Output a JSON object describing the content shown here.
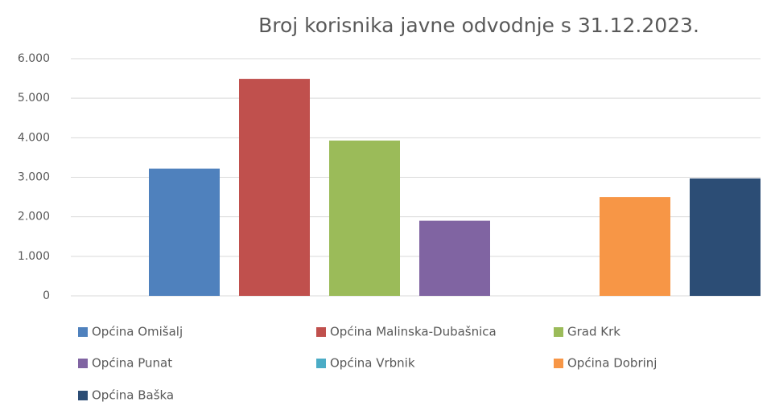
{
  "chart_data": {
    "type": "bar",
    "title": "Broj korisnika javne odvodnje s 31.12.2023.",
    "categories": [
      null
    ],
    "series": [
      {
        "name": "Općina Omišalj",
        "color": "#4f81bd",
        "values": [
          3220
        ]
      },
      {
        "name": "Općina Malinska-Dubašnica",
        "color": "#c0504d",
        "values": [
          5490
        ]
      },
      {
        "name": "Grad Krk",
        "color": "#9bbb59",
        "values": [
          3930
        ]
      },
      {
        "name": "Općina Punat",
        "color": "#8064a2",
        "values": [
          1900
        ]
      },
      {
        "name": "Općina Vrbnik",
        "color": "#4bacc6",
        "values": [
          0
        ]
      },
      {
        "name": "Općina Dobrinj",
        "color": "#f79646",
        "values": [
          2500
        ]
      },
      {
        "name": "Općina Baška",
        "color": "#2c4d75",
        "values": [
          2970
        ]
      }
    ],
    "ylim": [
      0,
      6000
    ],
    "yticks": [
      0,
      {
        "value": 1000,
        "label": "1.000"
      },
      {
        "value": 2000,
        "label": "2.000"
      },
      {
        "value": 3000,
        "label": "3.000"
      },
      {
        "value": 4000,
        "label": "4.000"
      },
      {
        "value": 5000,
        "label": "5.000"
      },
      {
        "value": 6000,
        "label": "6.000"
      }
    ],
    "grid": true,
    "legend": "bottom"
  }
}
